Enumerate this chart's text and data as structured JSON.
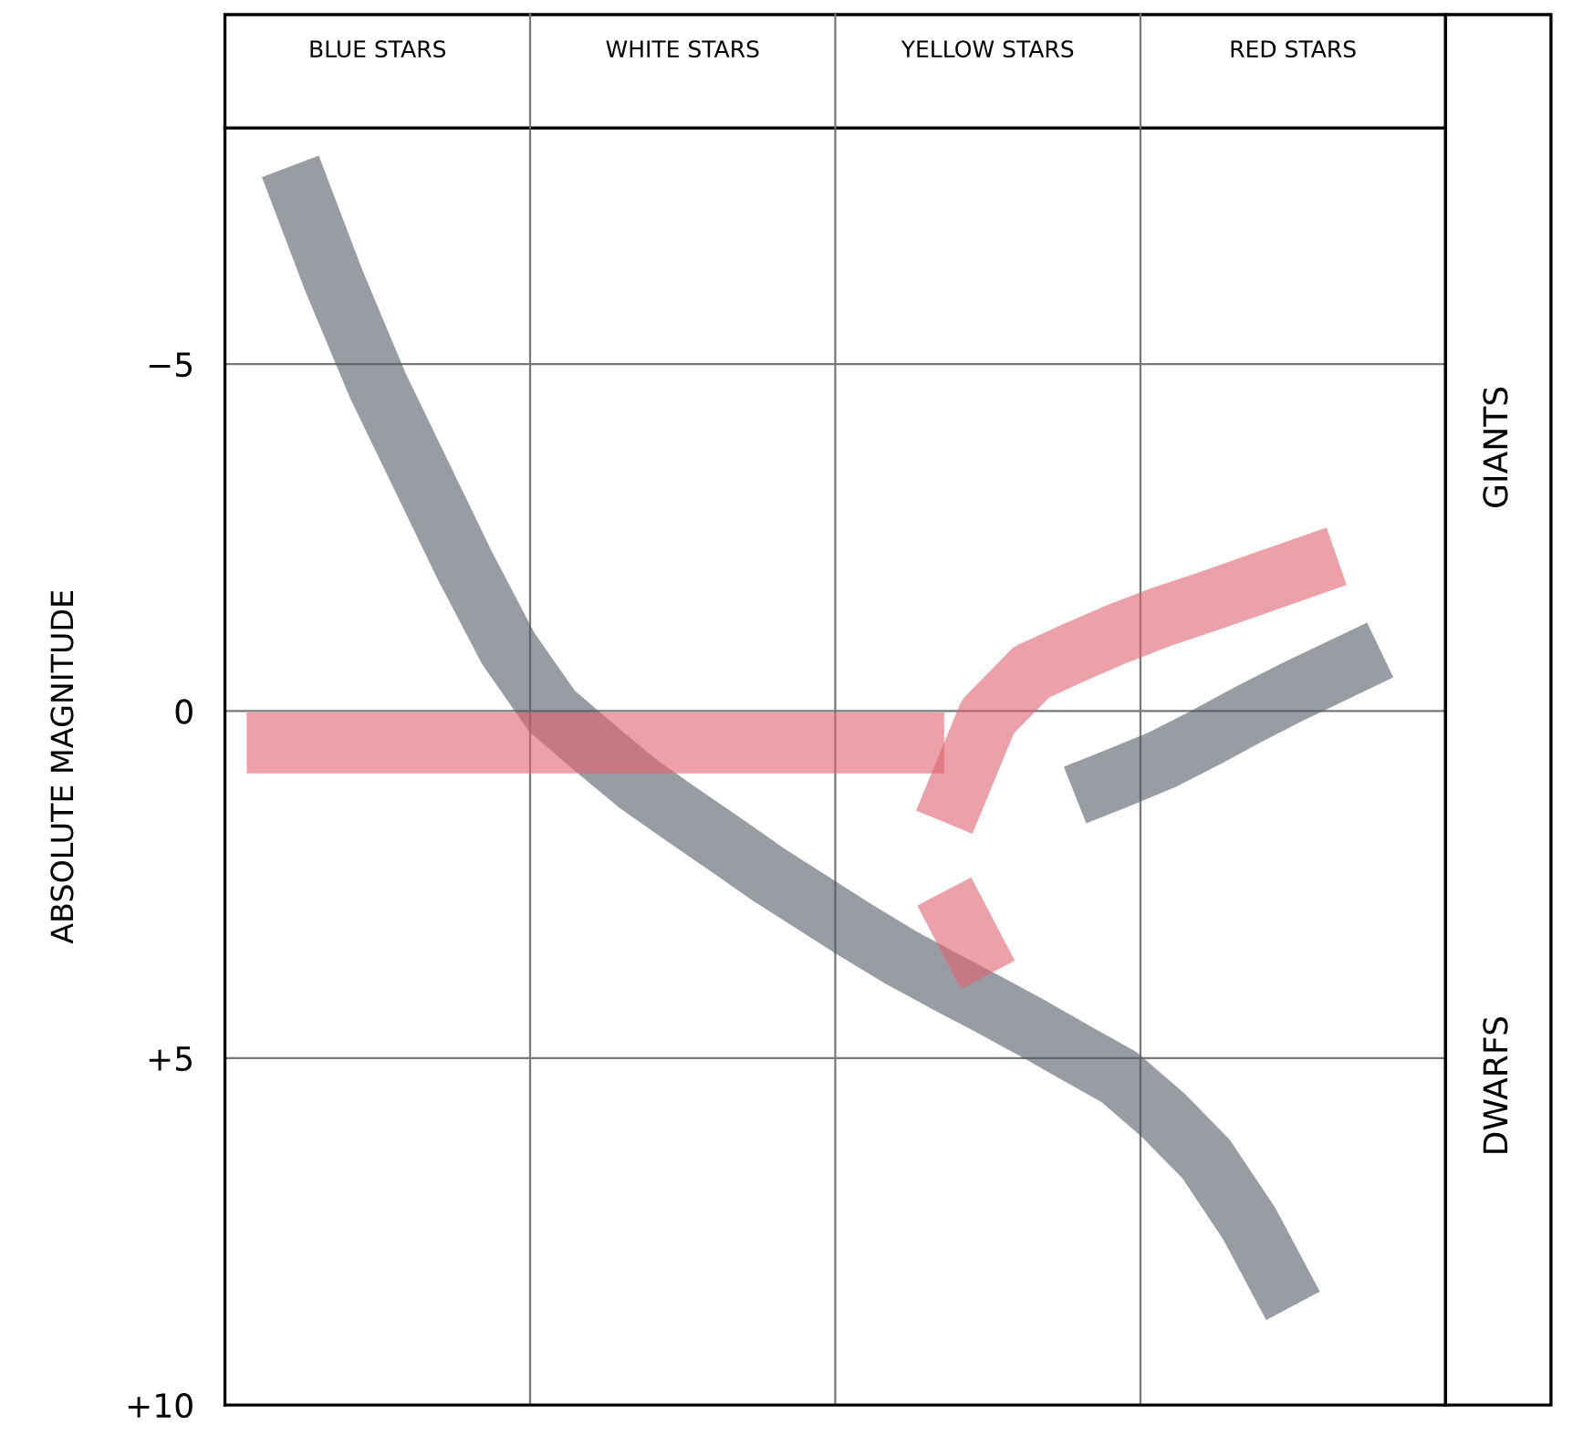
{
  "chart_data": {
    "type": "line",
    "ylabel": "ABSOLUTE MAGNITUDE",
    "categories": [
      null,
      null,
      null,
      null,
      null,
      null,
      null,
      null,
      null,
      null,
      null,
      null,
      null,
      null,
      null,
      null,
      null,
      null,
      null,
      null,
      null,
      null,
      null,
      null,
      null,
      null,
      null,
      null
    ],
    "ylim": [
      10,
      -8.4
    ],
    "yticks": [
      {
        "value": -5,
        "label": "−5"
      },
      {
        "value": 0,
        "label": "0"
      },
      {
        "value": 5,
        "label": "+5"
      },
      {
        "value": 10,
        "label": "+10"
      }
    ],
    "grid": true,
    "annotations": [
      "BLUE STARS",
      "WHITE STARS",
      "YELLOW STARS",
      "RED STARS",
      "GIANTS",
      "DWARFS"
    ],
    "series": [
      {
        "color": "#555a66",
        "values": [
          null,
          -7.85,
          -6.2,
          -4.7,
          -3.4,
          -2.1,
          -0.9,
          0.0,
          0.54,
          1.06,
          1.5,
          1.93,
          2.37,
          2.77,
          3.17,
          3.55,
          3.89,
          4.22,
          4.56,
          4.92,
          5.27,
          5.81,
          6.45,
          7.39,
          8.57,
          null,
          null,
          null
        ]
      },
      {
        "color": "#e0606e",
        "values": [
          0.46,
          0.46,
          0.46,
          0.46,
          0.46,
          0.46,
          0.46,
          0.46,
          0.46,
          0.46,
          0.46,
          0.46,
          0.46,
          0.46,
          0.46,
          0.46,
          0.46,
          null,
          null,
          null,
          null,
          null,
          null,
          null,
          null,
          null,
          null,
          null
        ]
      },
      {
        "color": "#e0606e",
        "values": [
          null,
          null,
          null,
          null,
          null,
          null,
          null,
          null,
          null,
          null,
          null,
          null,
          null,
          null,
          null,
          null,
          1.6,
          0.08,
          -0.56,
          -0.85,
          -1.12,
          -1.36,
          -1.57,
          -1.79,
          -2.01,
          -2.23,
          null,
          null
        ]
      },
      {
        "color": "#e0606e",
        "values": [
          null,
          null,
          null,
          null,
          null,
          null,
          null,
          null,
          null,
          null,
          null,
          null,
          null,
          null,
          null,
          null,
          2.6,
          3.8,
          null,
          null,
          null,
          null,
          null,
          null,
          null,
          null,
          null,
          null
        ]
      },
      {
        "color": "#555a66",
        "values": [
          null,
          null,
          null,
          null,
          null,
          null,
          null,
          null,
          null,
          null,
          null,
          null,
          null,
          null,
          null,
          null,
          null,
          null,
          null,
          1.21,
          0.96,
          0.7,
          0.38,
          0.04,
          -0.28,
          -0.58,
          -0.88,
          null
        ]
      }
    ]
  }
}
